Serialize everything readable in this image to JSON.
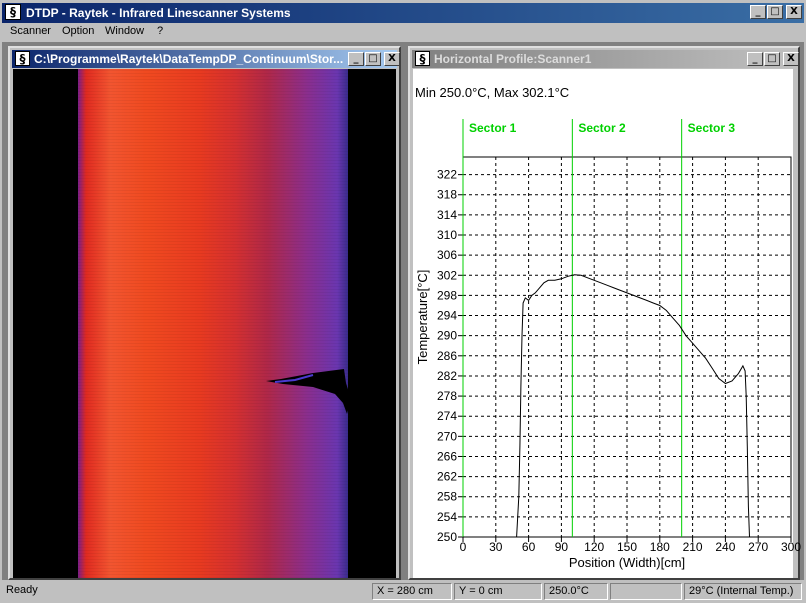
{
  "app": {
    "title": "DTDP - Raytek - Infrared Linescanner Systems",
    "icon": "app-logo-icon",
    "window_buttons": [
      "_",
      "□",
      "X"
    ]
  },
  "menu": [
    {
      "label": "Scanner"
    },
    {
      "label": "Option"
    },
    {
      "label": "Window"
    },
    {
      "label": "?"
    }
  ],
  "thermal_window": {
    "title": "C:\\Programme\\Raytek\\DataTempDP_Continuum\\Stor...",
    "active": true,
    "colors": {
      "hot": "#f25530",
      "cool": "#6a36b0",
      "background": "#000000"
    }
  },
  "profile_window": {
    "title": "Horizontal Profile:Scanner1",
    "active": false,
    "minmax_text": "Min  250.0°C, Max  302.1°C"
  },
  "chart_data": {
    "type": "line",
    "title": "",
    "xlabel": "Position (Width)[cm]",
    "ylabel": "Temperature[°C]",
    "xlim": [
      0,
      300
    ],
    "ylim": [
      250,
      322
    ],
    "xticks": [
      0,
      30,
      60,
      90,
      120,
      150,
      180,
      210,
      240,
      270,
      300
    ],
    "yticks": [
      250,
      254,
      258,
      262,
      266,
      270,
      274,
      278,
      282,
      286,
      290,
      294,
      298,
      302,
      306,
      310,
      314,
      318,
      322
    ],
    "y_top": 325.5,
    "grid": true,
    "colors": {
      "line": "#000000",
      "sector": "#00d000",
      "grid": "#000000"
    },
    "sectors": [
      {
        "name": "Sector 1",
        "x_start": 0
      },
      {
        "name": "Sector 2",
        "x_start": 100
      },
      {
        "name": "Sector 3",
        "x_start": 200
      }
    ],
    "series": [
      {
        "values": [
          [
            0,
            250
          ],
          [
            49,
            250
          ],
          [
            51,
            258
          ],
          [
            52,
            268
          ],
          [
            53,
            280
          ],
          [
            54,
            290
          ],
          [
            55,
            296.5
          ],
          [
            57,
            297.5
          ],
          [
            60,
            297
          ],
          [
            63,
            298
          ],
          [
            66,
            298.5
          ],
          [
            70,
            299.5
          ],
          [
            74,
            300.5
          ],
          [
            78,
            301
          ],
          [
            84,
            301
          ],
          [
            90,
            301.3
          ],
          [
            96,
            301.8
          ],
          [
            102,
            302.1
          ],
          [
            108,
            302
          ],
          [
            114,
            301.5
          ],
          [
            120,
            301
          ],
          [
            126,
            300.5
          ],
          [
            132,
            300
          ],
          [
            138,
            299.5
          ],
          [
            144,
            299
          ],
          [
            150,
            298.5
          ],
          [
            156,
            298
          ],
          [
            162,
            297.5
          ],
          [
            168,
            297
          ],
          [
            174,
            296.5
          ],
          [
            180,
            296
          ],
          [
            186,
            295
          ],
          [
            192,
            293.5
          ],
          [
            198,
            292
          ],
          [
            204,
            290
          ],
          [
            210,
            288.5
          ],
          [
            216,
            287
          ],
          [
            222,
            285.5
          ],
          [
            228,
            283.5
          ],
          [
            234,
            281.5
          ],
          [
            240,
            280.5
          ],
          [
            246,
            281
          ],
          [
            252,
            282.5
          ],
          [
            256,
            284
          ],
          [
            258,
            283
          ],
          [
            259,
            278
          ],
          [
            260,
            268
          ],
          [
            261,
            256
          ],
          [
            262,
            250
          ],
          [
            300,
            250
          ]
        ]
      }
    ]
  },
  "status": {
    "ready": "Ready",
    "x": "X = 280 cm",
    "y": "Y = 0 cm",
    "temp": "250.0°C",
    "empty": "",
    "internal": "29°C (Internal Temp.)"
  }
}
